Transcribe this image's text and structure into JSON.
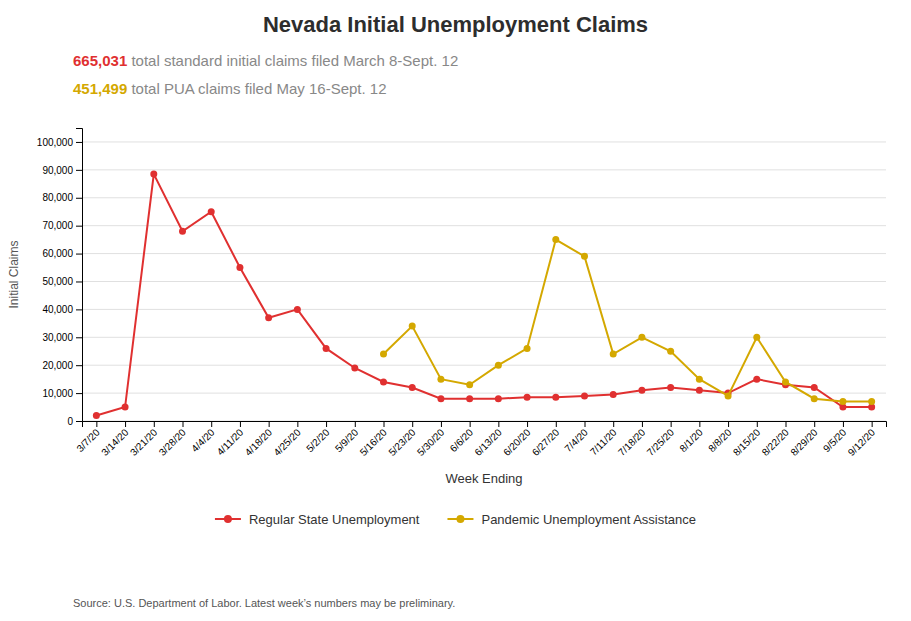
{
  "chart_data": {
    "type": "line",
    "title": "Nevada Initial Unemployment Claims",
    "subtitle": [
      {
        "number": "665,031",
        "text": " total standard initial claims filed March 8-Sept. 12"
      },
      {
        "number": "451,499",
        "text": " total PUA claims filed May 16-Sept. 12"
      }
    ],
    "source": "Source: U.S. Department of Labor. Latest week’s numbers may be preliminary.",
    "xlabel": "Week Ending",
    "ylabel": "Initial Claims",
    "categories": [
      "3/7/20",
      "3/14/20",
      "3/21/20",
      "3/28/20",
      "4/4/20",
      "4/11/20",
      "4/18/20",
      "4/25/20",
      "5/2/20",
      "5/9/20",
      "5/16/20",
      "5/23/20",
      "5/30/20",
      "6/6/20",
      "6/13/20",
      "6/20/20",
      "6/27/20",
      "7/4/20",
      "7/11/20",
      "7/18/20",
      "7/25/20",
      "8/1/20",
      "8/8/20",
      "8/15/20",
      "8/22/20",
      "8/29/20",
      "9/5/20",
      "9/12/20"
    ],
    "series": [
      {
        "name": "Regular State Unemployment",
        "color": "#E03030",
        "values": [
          2000,
          5000,
          88500,
          68000,
          75000,
          55000,
          37000,
          40000,
          26000,
          19000,
          14000,
          12000,
          8000,
          8000,
          8000,
          8500,
          8500,
          9000,
          9500,
          11000,
          12000,
          11000,
          10000,
          15000,
          13000,
          12000,
          5000,
          5000
        ]
      },
      {
        "name": "Pandemic Unemployment Assistance",
        "color": "#D4A800",
        "values": [
          null,
          null,
          null,
          null,
          null,
          null,
          null,
          null,
          null,
          null,
          24000,
          34000,
          15000,
          13000,
          20000,
          26000,
          65000,
          59000,
          24000,
          30000,
          25000,
          15000,
          9000,
          30000,
          14000,
          8000,
          7000,
          7000
        ]
      }
    ],
    "marker": "circle",
    "ylim": [
      0,
      105000
    ],
    "yticks": [
      0,
      {
        "value": 10000,
        "label": "10,000"
      },
      {
        "value": 20000,
        "label": "20,000"
      },
      {
        "value": 30000,
        "label": "30,000"
      },
      {
        "value": 40000,
        "label": "40,000"
      },
      {
        "value": 50000,
        "label": "50,000"
      },
      {
        "value": 60000,
        "label": "60,000"
      },
      {
        "value": 70000,
        "label": "70,000"
      },
      {
        "value": 80000,
        "label": "80,000"
      },
      {
        "value": 90000,
        "label": "90,000"
      },
      {
        "value": 100000,
        "label": "100,000"
      }
    ],
    "grid": true,
    "legend": "bottom"
  }
}
